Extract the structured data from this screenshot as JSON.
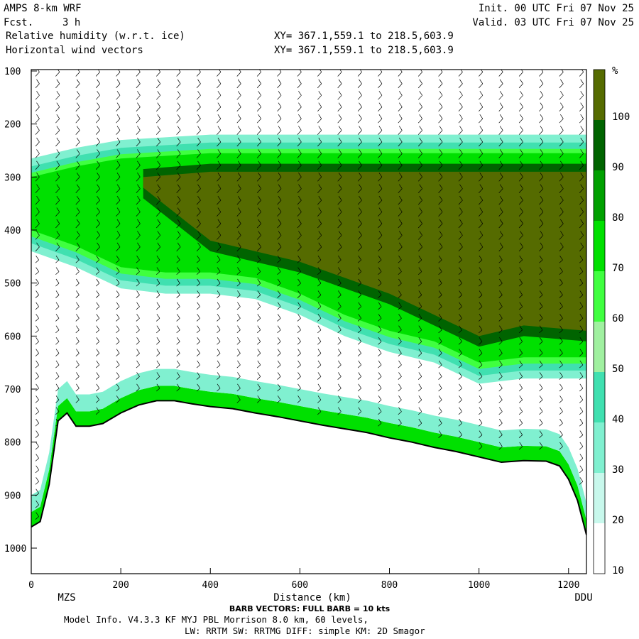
{
  "header": {
    "title": "AMPS 8-km WRF",
    "forecast_label": "Fcst.",
    "forecast_value": "3 h",
    "field_name": "Relative humidity (w.r.t. ice)",
    "vector_name": "Horizontal wind vectors",
    "init": "Init. 00 UTC Fri 07 Nov 25",
    "valid": "Valid. 03 UTC Fri 07 Nov 25",
    "xy_1": "XY= 367.1,559.1 to 218.5,603.9",
    "xy_2": "XY= 367.1,559.1 to 218.5,603.9"
  },
  "footer": {
    "barb_note": "BARB VECTORS: FULL BARB = 10 kts",
    "model_info": "Model Info. V4.3.3   KF      MYJ PBL  Morrison           8.0 km,  60 levels,",
    "physics": "LW: RRTM SW: RRTMG   DIFF: simple KM: 2D Smagor"
  },
  "colorbar": {
    "unit": "%",
    "ticks": [
      "100",
      "90",
      "80",
      "70",
      "60",
      "50",
      "40",
      "30",
      "20",
      "10"
    ],
    "colors": [
      "#556b00",
      "#006400",
      "#00a000",
      "#00e000",
      "#40ff40",
      "#a0f0a0",
      "#40e0b0",
      "#80f0d0",
      "#c8f8ec",
      "#ffffff"
    ]
  },
  "chart_data": {
    "type": "heatmap",
    "title": "Relative humidity (w.r.t. ice)",
    "xlabel": "Distance (km)",
    "ylabel": "",
    "xlim": [
      0,
      1240
    ],
    "ylim": [
      1050,
      100
    ],
    "x_ticks": [
      0,
      200,
      400,
      600,
      800,
      1000,
      1200
    ],
    "x_tick_labels": [
      "0",
      "200",
      "400",
      "600",
      "800",
      "1000",
      "1200"
    ],
    "y_ticks": [
      100,
      200,
      300,
      400,
      500,
      600,
      700,
      800,
      900,
      1000
    ],
    "y_tick_labels": [
      "100",
      "200",
      "300",
      "400",
      "500",
      "600",
      "700",
      "800",
      "900",
      "1000"
    ],
    "endpoint_labels": [
      "MZS",
      "DDU"
    ],
    "levels": [
      10,
      20,
      30,
      40,
      50,
      60,
      70,
      80,
      90,
      100
    ],
    "terrain_surface_pressure": {
      "x": [
        0,
        20,
        40,
        60,
        80,
        100,
        130,
        160,
        200,
        240,
        280,
        320,
        360,
        400,
        450,
        500,
        550,
        600,
        650,
        700,
        750,
        800,
        850,
        900,
        950,
        1000,
        1050,
        1100,
        1150,
        1180,
        1200,
        1220,
        1240
      ],
      "p": [
        960,
        950,
        880,
        760,
        745,
        770,
        770,
        765,
        745,
        730,
        722,
        722,
        728,
        733,
        737,
        745,
        752,
        760,
        768,
        775,
        782,
        792,
        800,
        810,
        818,
        828,
        838,
        835,
        836,
        845,
        870,
        910,
        975
      ]
    },
    "moist_layer_upper": {
      "x": [
        0,
        100,
        200,
        300,
        400,
        500,
        600,
        700,
        800,
        900,
        1000,
        1100,
        1240
      ],
      "p_top": [
        300,
        280,
        265,
        260,
        255,
        255,
        255,
        255,
        255,
        255,
        255,
        255,
        255
      ],
      "p_bottom": [
        400,
        430,
        470,
        480,
        480,
        490,
        520,
        560,
        590,
        610,
        650,
        640,
        640
      ]
    },
    "saturated_core_90_pct": {
      "x": [
        250,
        400,
        600,
        800,
        1000,
        1100,
        1240
      ],
      "p_top": [
        300,
        290,
        290,
        290,
        290,
        290,
        290
      ],
      "p_bottom": [
        320,
        420,
        460,
        520,
        600,
        580,
        590
      ]
    }
  }
}
